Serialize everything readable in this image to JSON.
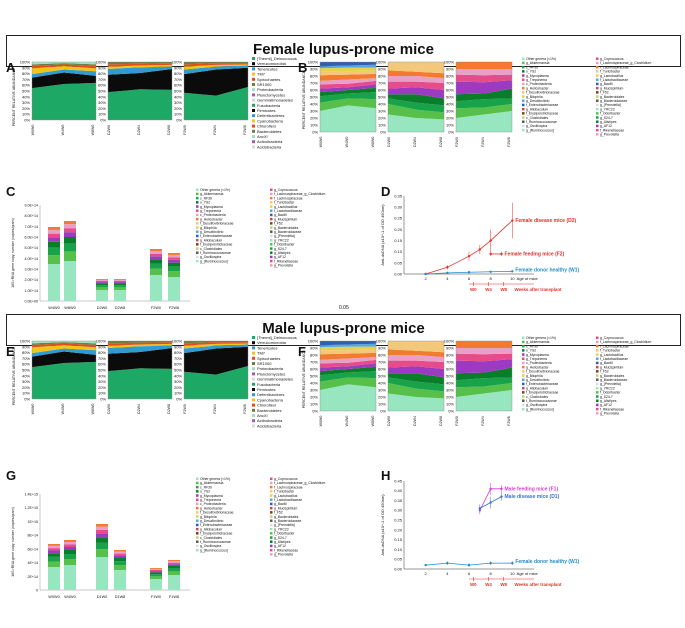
{
  "headers": {
    "female": "Female lupus-prone mice",
    "male": "Male lupus-prone mice",
    "gap": "0.05"
  },
  "phyla_legend": [
    "[Thermi]_Deinococcus",
    "Verrucomicrobia",
    "Tenericutes",
    "TM7",
    "Spirochaetes",
    "SR1000",
    "Proteobacteria",
    "Planctomycetes",
    "Gemmatimonadetes",
    "Fusobacteria",
    "Firmicutes",
    "Deferribacteres",
    "Cyanobacteria",
    "Chloroflexi",
    "Bacteroidetes",
    "AncXI",
    "Actinobacteria",
    "Acidobacteria"
  ],
  "genus_legend_col1": [
    "Other genera (<1%)",
    "g_Akkermansia",
    "c_RF39",
    "o_YS2",
    "g_Mycoplasma",
    "g_Treponema",
    "c_Proteobacteria",
    "g_Helicobacter",
    "f_Desulfovibrionaceae",
    "g_Bilophila",
    "g_Desulfovibrio",
    "f_Enterobacteriaceae",
    "g_Allobaculum",
    "f_Erysipelotrichaceae",
    "c_Clostridiales",
    "f_Ruminococcaceae",
    "g_Oscillospira",
    "g_[Ruminococcus]"
  ],
  "genus_legend_col2": [
    "g_Coprococcus",
    "f_Lachnospiraceae_g_Clostridium",
    "f_Lachnospiraceae",
    "f_Turicibacter",
    "g_Lactobacillus",
    "f_Lactobacillaceae",
    "g_Bacilli",
    "g_Mucispirillum",
    "f_F52",
    "g_Bacteroidales",
    "g_Bacteroidaceae",
    "g_[Prevotella]",
    "g_YRC22",
    "f_Odoribacter",
    "g_S24-7",
    "g_Alistipes",
    "g_AF12",
    "f_Rikenellaceae",
    "g_Prevotella"
  ],
  "ylabels": {
    "relative_phyla": "PERCENT RELATIVE ABUNDANCE",
    "relative_genera": "PERCENT RELATIVE ABUNDANCE",
    "gene_copy": "16S rRNA gene copy number (copies/gram)",
    "anti_dsdna": "Anti-dsDNA (x10^-1 of OD 450nm)"
  },
  "percent_ticks": [
    "100%",
    "90%",
    "80%",
    "70%",
    "60%",
    "50%",
    "40%",
    "30%",
    "20%",
    "10%",
    "0%"
  ],
  "group_labels": {
    "donor": [
      "W0W0",
      "W4W0",
      "W8W0"
    ],
    "disease": [
      "D2W0",
      "D2W4",
      "D2W8"
    ],
    "feeding": [
      "F2W0",
      "F2W4",
      "F2W8"
    ]
  },
  "female": {
    "bar_labels_c": [
      "W4W0",
      "W8W0",
      "D2W0",
      "D2W8",
      "F2W0",
      "F2W8"
    ],
    "ticks_c": [
      "9.0E+14",
      "8.0E+14",
      "7.0E+14",
      "6.0E+14",
      "5.0E+14",
      "4.0E+14",
      "3.0E+14",
      "2.0E+14",
      "1.0E+14",
      "0.0E+00"
    ]
  },
  "male": {
    "bar_labels_g": [
      "W0W0",
      "W4W0",
      "D1W0",
      "D1W8",
      "F1W0",
      "F1W8"
    ],
    "ticks_g": [
      "1.4E+15",
      "1.2E+15",
      "1E+15",
      "8E+14",
      "6E+14",
      "4E+14",
      "2E+14",
      "0"
    ]
  },
  "chart_data": [
    {
      "panel": "D",
      "type": "line",
      "title": "",
      "xlabel": "Age of mice",
      "ylabel": "Anti-dsDNA (x10^-1 of OD 450nm)",
      "x_ticks": [
        "2",
        "4",
        "6",
        "8",
        "10"
      ],
      "y_ticks": [
        "0.00",
        "0.05",
        "0.10",
        "0.15",
        "0.20",
        "0.25",
        "0.30",
        "0.35"
      ],
      "xlim": [
        0,
        12
      ],
      "ylim": [
        0,
        0.35
      ],
      "series": [
        {
          "name": "Female disease mice (D2)",
          "color": "#e3302b",
          "x": [
            2,
            4,
            6,
            7,
            8,
            10
          ],
          "y": [
            0.0,
            0.03,
            0.08,
            0.11,
            0.15,
            0.24
          ],
          "err": [
            0.002,
            0.01,
            0.02,
            0.02,
            0.05,
            0.08
          ]
        },
        {
          "name": "Female feeding mice (F2)",
          "color": "#e3302b",
          "x": [
            8,
            9
          ],
          "y": [
            0.09,
            0.09
          ],
          "err": [
            0.01,
            0.01
          ]
        },
        {
          "name": "Female donor healthy (W1)",
          "color": "#1f8ec9",
          "x": [
            2,
            4,
            6,
            8,
            10
          ],
          "y": [
            0.0,
            0.005,
            0.008,
            0.01,
            0.012
          ],
          "err": [
            0.002,
            0.003,
            0.003,
            0.004,
            0.004
          ]
        }
      ],
      "annotations": {
        "transplant_marks": [
          "W0",
          "W4",
          "W8"
        ],
        "transplant_label": "Weeks after transplant"
      }
    },
    {
      "panel": "H",
      "type": "line",
      "title": "",
      "xlabel": "Age of mice",
      "ylabel": "Anti-dsDNA (x10^-1 of OD 450nm)",
      "x_ticks": [
        "2",
        "4",
        "6",
        "8",
        "10"
      ],
      "y_ticks": [
        "0.00",
        "0.05",
        "0.10",
        "0.15",
        "0.20",
        "0.25",
        "0.30",
        "0.35",
        "0.40",
        "0.45"
      ],
      "xlim": [
        0,
        12
      ],
      "ylim": [
        0,
        0.45
      ],
      "series": [
        {
          "name": "Male feeding mice (F1)",
          "color": "#d63ad6",
          "x": [
            7,
            8,
            9
          ],
          "y": [
            0.3,
            0.41,
            0.41
          ],
          "err": [
            0.02,
            0.03,
            0.02
          ]
        },
        {
          "name": "Male disease mice (D1)",
          "color": "#3a6fd6",
          "x": [
            7,
            8,
            9
          ],
          "y": [
            0.31,
            0.34,
            0.37
          ],
          "err": [
            0.02,
            0.03,
            0.02
          ]
        },
        {
          "name": "Female donor healthy (W1)",
          "color": "#1f8ec9",
          "x": [
            2,
            4,
            6,
            8,
            10
          ],
          "y": [
            0.02,
            0.03,
            0.02,
            0.03,
            0.03
          ],
          "err": [
            0.005,
            0.01,
            0.01,
            0.01,
            0.01
          ]
        }
      ],
      "annotations": {
        "transplant_marks": [
          "W0",
          "W4",
          "W8"
        ],
        "transplant_label": "Weeks after transplant"
      }
    }
  ]
}
